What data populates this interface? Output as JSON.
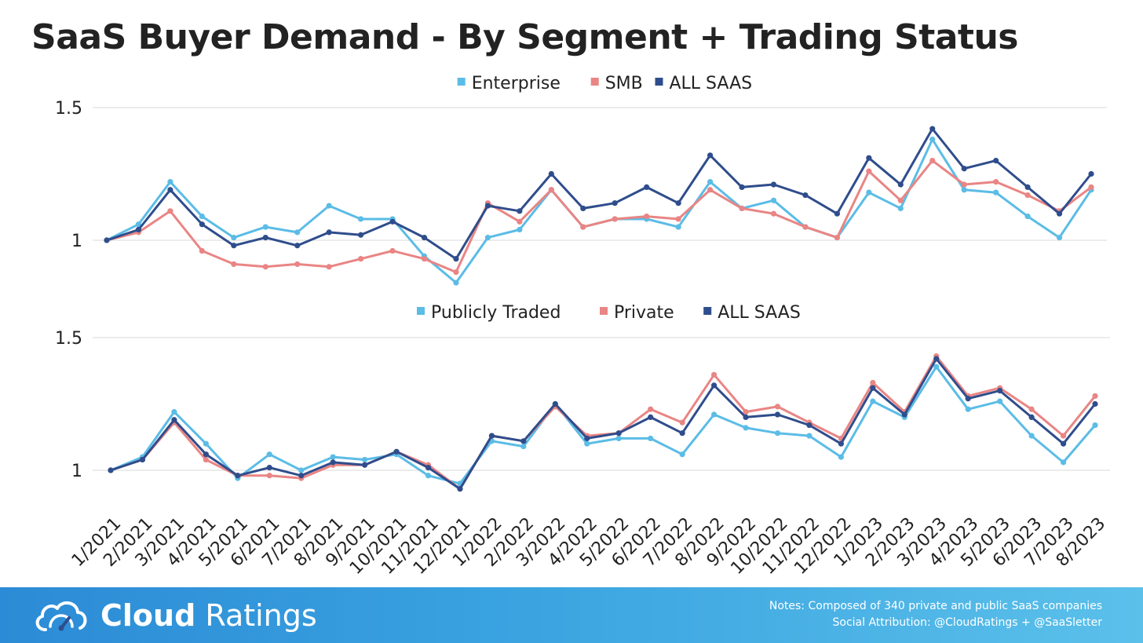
{
  "title": "SaaS Buyer Demand - By Segment + Trading Status",
  "footer": {
    "brand_bold": "Cloud",
    "brand_light": "Ratings",
    "notes_line1": "Notes: Composed of 340 private and public SaaS companies",
    "notes_line2": "Social Attribution: @CloudRatings + @SaaSletter"
  },
  "chart_data": [
    {
      "type": "line",
      "legend_position": "top-center",
      "grid": true,
      "y_ticks": [
        "1.5",
        "1"
      ],
      "ylim": [
        0.85,
        1.5
      ],
      "categories": [
        "1/2021",
        "2/2021",
        "3/2021",
        "4/2021",
        "5/2021",
        "6/2021",
        "7/2021",
        "8/2021",
        "9/2021",
        "10/2021",
        "11/2021",
        "12/2021",
        "1/2022",
        "2/2022",
        "3/2022",
        "4/2022",
        "5/2022",
        "6/2022",
        "7/2022",
        "8/2022",
        "9/2022",
        "10/2022",
        "11/2022",
        "12/2022",
        "1/2023",
        "2/2023",
        "3/2023",
        "4/2023",
        "5/2023",
        "6/2023",
        "7/2023",
        "8/2023"
      ],
      "series": [
        {
          "name": "Enterprise",
          "color": "#5bbce6",
          "values": [
            1.0,
            1.06,
            1.22,
            1.09,
            1.01,
            1.05,
            1.03,
            1.13,
            1.08,
            1.08,
            0.94,
            0.84,
            1.01,
            1.04,
            1.19,
            1.05,
            1.08,
            1.08,
            1.05,
            1.22,
            1.12,
            1.15,
            1.05,
            1.01,
            1.18,
            1.12,
            1.38,
            1.19,
            1.18,
            1.09,
            1.01,
            1.19
          ]
        },
        {
          "name": "SMB",
          "color": "#e98584",
          "values": [
            1.0,
            1.03,
            1.11,
            0.96,
            0.91,
            0.9,
            0.91,
            0.9,
            0.93,
            0.96,
            0.93,
            0.88,
            1.14,
            1.07,
            1.19,
            1.05,
            1.08,
            1.09,
            1.08,
            1.19,
            1.12,
            1.1,
            1.05,
            1.01,
            1.26,
            1.15,
            1.3,
            1.21,
            1.22,
            1.17,
            1.11,
            1.2
          ]
        },
        {
          "name": "ALL SAAS",
          "color": "#2f4d8c",
          "values": [
            1.0,
            1.04,
            1.19,
            1.06,
            0.98,
            1.01,
            0.98,
            1.03,
            1.02,
            1.07,
            1.01,
            0.93,
            1.13,
            1.11,
            1.25,
            1.12,
            1.14,
            1.2,
            1.14,
            1.32,
            1.2,
            1.21,
            1.17,
            1.1,
            1.31,
            1.21,
            1.42,
            1.27,
            1.3,
            1.2,
            1.1,
            1.25
          ]
        }
      ]
    },
    {
      "type": "line",
      "legend_position": "top-center",
      "grid": true,
      "y_ticks": [
        "1.5",
        "1"
      ],
      "ylim": [
        0.85,
        1.5
      ],
      "categories": [
        "1/2021",
        "2/2021",
        "3/2021",
        "4/2021",
        "5/2021",
        "6/2021",
        "7/2021",
        "8/2021",
        "9/2021",
        "10/2021",
        "11/2021",
        "12/2021",
        "1/2022",
        "2/2022",
        "3/2022",
        "4/2022",
        "5/2022",
        "6/2022",
        "7/2022",
        "8/2022",
        "9/2022",
        "10/2022",
        "11/2022",
        "12/2022",
        "1/2023",
        "2/2023",
        "3/2023",
        "4/2023",
        "5/2023",
        "6/2023",
        "7/2023",
        "8/2023"
      ],
      "series": [
        {
          "name": "Publicly Traded",
          "color": "#5bbce6",
          "values": [
            1.0,
            1.05,
            1.22,
            1.1,
            0.97,
            1.06,
            1.0,
            1.05,
            1.04,
            1.06,
            0.98,
            0.95,
            1.11,
            1.09,
            1.25,
            1.1,
            1.12,
            1.12,
            1.06,
            1.21,
            1.16,
            1.14,
            1.13,
            1.05,
            1.26,
            1.2,
            1.39,
            1.23,
            1.26,
            1.13,
            1.03,
            1.17
          ]
        },
        {
          "name": "Private",
          "color": "#e98584",
          "values": [
            1.0,
            1.04,
            1.18,
            1.04,
            0.98,
            0.98,
            0.97,
            1.02,
            1.02,
            1.07,
            1.02,
            0.93,
            1.13,
            1.11,
            1.24,
            1.13,
            1.14,
            1.23,
            1.18,
            1.36,
            1.22,
            1.24,
            1.18,
            1.12,
            1.33,
            1.22,
            1.43,
            1.28,
            1.31,
            1.23,
            1.13,
            1.28
          ]
        },
        {
          "name": "ALL SAAS",
          "color": "#2f4d8c",
          "values": [
            1.0,
            1.04,
            1.19,
            1.06,
            0.98,
            1.01,
            0.98,
            1.03,
            1.02,
            1.07,
            1.01,
            0.93,
            1.13,
            1.11,
            1.25,
            1.12,
            1.14,
            1.2,
            1.14,
            1.32,
            1.2,
            1.21,
            1.17,
            1.1,
            1.31,
            1.21,
            1.42,
            1.27,
            1.3,
            1.2,
            1.1,
            1.25
          ]
        }
      ]
    }
  ]
}
